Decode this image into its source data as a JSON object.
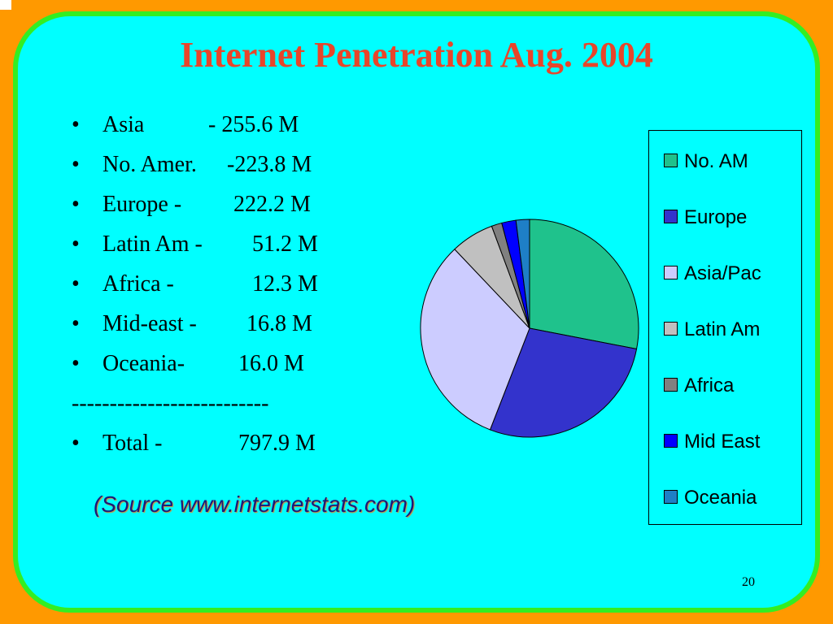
{
  "slide": {
    "title": "Internet Penetration Aug. 2004",
    "divider": "--------------------------",
    "source": "(Source www.internetstats.com)",
    "page_number": "20",
    "bullet_symbol": "•"
  },
  "stats": [
    {
      "label": "Asia",
      "value": "-  255.6 M"
    },
    {
      "label": "No. Amer.",
      "value": "-223.8 M"
    },
    {
      "label": "Europe -",
      "value": "222.2 M"
    },
    {
      "label": "Latin Am -",
      "value": "51.2 M"
    },
    {
      "label": "Africa -",
      "value": "12.3 M"
    },
    {
      "label": "Mid-east -",
      "value": "16.8 M"
    },
    {
      "label": "Oceania-",
      "value": "16.0 M"
    }
  ],
  "total": {
    "label": "Total -",
    "value": "797.9 M"
  },
  "colors": {
    "background": "#FF9900",
    "panel": "#00FFFF",
    "panel_border": "#33EE22",
    "title": "#E8452A"
  },
  "chart_data": {
    "type": "pie",
    "title": "",
    "legend": "right",
    "slices": [
      {
        "name": "No. AM",
        "value": 223.8,
        "color": "#1FC28C"
      },
      {
        "name": "Europe",
        "value": 222.2,
        "color": "#3333CC"
      },
      {
        "name": "Asia/Pac",
        "value": 255.6,
        "color": "#CCCCFF"
      },
      {
        "name": "Latin Am",
        "value": 51.2,
        "color": "#C0C0C0"
      },
      {
        "name": "Africa",
        "value": 12.3,
        "color": "#808080"
      },
      {
        "name": "Mid East",
        "value": 16.8,
        "color": "#0000FF"
      },
      {
        "name": "Oceania",
        "value": 16.0,
        "color": "#1E7FC6"
      }
    ]
  }
}
